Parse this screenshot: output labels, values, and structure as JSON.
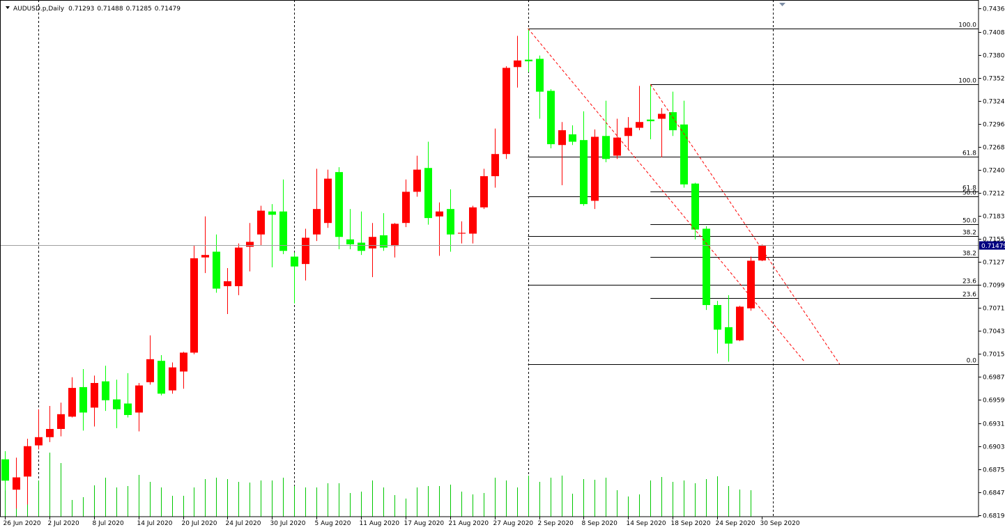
{
  "chart_data": {
    "type": "candlestick",
    "symbol": "AUDUSD.p,Daily",
    "categories": [
      "26 Jun 2020",
      null,
      null,
      null,
      "2 Jul 2020",
      null,
      null,
      null,
      "8 Jul 2020",
      null,
      null,
      null,
      "14 Jul 2020",
      null,
      null,
      null,
      "20 Jul 2020",
      null,
      null,
      null,
      "24 Jul 2020",
      null,
      null,
      null,
      "30 Jul 2020",
      null,
      null,
      null,
      "5 Aug 2020",
      null,
      null,
      null,
      "11 Aug 2020",
      null,
      null,
      null,
      "17 Aug 2020",
      null,
      null,
      null,
      "21 Aug 2020",
      null,
      null,
      null,
      "27 Aug 2020",
      null,
      null,
      null,
      "2 Sep 2020",
      null,
      null,
      null,
      "8 Sep 2020",
      null,
      null,
      null,
      "14 Sep 2020",
      null,
      null,
      null,
      "18 Sep 2020",
      null,
      null,
      null,
      "24 Sep 2020",
      null,
      null,
      null,
      "30 Sep 2020"
    ],
    "open": [
      0.6887,
      0.685,
      0.6866,
      0.6904,
      0.6914,
      0.6924,
      0.6939,
      0.6975,
      0.695,
      0.6982,
      0.696,
      0.6955,
      0.6944,
      0.6981,
      0.7007,
      0.6971,
      0.6994,
      0.7017,
      0.7133,
      0.714,
      0.7098,
      0.7098,
      0.7146,
      0.7161,
      0.7189,
      0.7189,
      0.7134,
      0.7125,
      0.7161,
      0.7175,
      0.7237,
      0.7155,
      0.7151,
      0.7144,
      0.716,
      0.7147,
      0.7175,
      0.7213,
      0.7242,
      0.7183,
      0.7192,
      0.7162,
      0.7162,
      0.7194,
      0.7232,
      0.7259,
      0.7365,
      0.7374,
      0.7375,
      0.7336,
      0.727,
      0.7283,
      0.7276,
      0.7202,
      0.7281,
      0.7257,
      0.7281,
      0.7291,
      0.7301,
      0.7302,
      0.731,
      0.7295,
      0.7223,
      0.7168,
      0.7075,
      0.7048,
      0.7032,
      0.7071,
      0.71293
    ],
    "high": [
      0.6897,
      0.6889,
      0.6912,
      0.6948,
      0.6952,
      0.6956,
      0.6987,
      0.6997,
      0.6989,
      0.7001,
      0.6984,
      0.6992,
      0.698,
      0.7038,
      0.7014,
      0.7005,
      0.7018,
      0.7148,
      0.7183,
      0.7161,
      0.712,
      0.715,
      0.7175,
      0.7196,
      0.7198,
      0.7228,
      0.7139,
      0.7168,
      0.7241,
      0.724,
      0.7243,
      0.7192,
      0.7189,
      0.7175,
      0.7187,
      0.7175,
      0.7228,
      0.7257,
      0.7274,
      0.72,
      0.7216,
      0.7177,
      0.7196,
      0.7241,
      0.729,
      0.7366,
      0.7403,
      0.7412,
      0.7379,
      0.7338,
      0.7298,
      0.7294,
      0.7311,
      0.7289,
      0.7324,
      0.7302,
      0.7304,
      0.7342,
      0.7344,
      0.7315,
      0.7335,
      0.7324,
      0.7224,
      0.7171,
      0.708,
      0.7087,
      0.7074,
      0.7134,
      0.71488
    ],
    "low": [
      0.6849,
      0.6827,
      0.6832,
      0.6899,
      0.6908,
      0.6915,
      0.6938,
      0.6922,
      0.6927,
      0.6946,
      0.6925,
      0.6938,
      0.6921,
      0.6978,
      0.6965,
      0.6967,
      0.6973,
      0.7015,
      0.7114,
      0.709,
      0.7064,
      0.7087,
      0.7116,
      0.7148,
      0.7121,
      0.7137,
      0.7077,
      0.7105,
      0.7153,
      0.7169,
      0.7143,
      0.7143,
      0.7136,
      0.7109,
      0.7141,
      0.7133,
      0.717,
      0.7207,
      0.7173,
      0.7135,
      0.714,
      0.715,
      0.715,
      0.7192,
      0.7218,
      0.7253,
      0.734,
      0.7359,
      0.7302,
      0.7266,
      0.7221,
      0.727,
      0.7196,
      0.7192,
      0.7249,
      0.7253,
      0.7264,
      0.7288,
      0.7277,
      0.7255,
      0.7281,
      0.7218,
      0.7155,
      0.7069,
      0.7016,
      0.7006,
      0.7031,
      0.7068,
      0.71285
    ],
    "close": [
      0.6861,
      0.6865,
      0.6903,
      0.6914,
      0.6924,
      0.6942,
      0.6974,
      0.6944,
      0.698,
      0.6959,
      0.6948,
      0.6941,
      0.6977,
      0.7009,
      0.6967,
      0.6999,
      0.7017,
      0.7132,
      0.7136,
      0.7095,
      0.7104,
      0.7145,
      0.7152,
      0.719,
      0.7185,
      0.7141,
      0.7122,
      0.7157,
      0.7192,
      0.7229,
      0.7158,
      0.7149,
      0.7141,
      0.7158,
      0.7145,
      0.7174,
      0.7213,
      0.724,
      0.7181,
      0.7189,
      0.7161,
      0.7163,
      0.7194,
      0.7232,
      0.7259,
      0.7364,
      0.7373,
      0.7372,
      0.7335,
      0.7271,
      0.7288,
      0.7274,
      0.7198,
      0.728,
      0.7253,
      0.7279,
      0.7291,
      0.7298,
      0.7299,
      0.7308,
      0.7288,
      0.7222,
      0.7167,
      0.7075,
      0.7045,
      0.7028,
      0.7073,
      0.7129,
      0.71479
    ],
    "volume": [
      92,
      52,
      77,
      52,
      92,
      77,
      24,
      28,
      45,
      56,
      42,
      44,
      60,
      50,
      42,
      30,
      30,
      42,
      54,
      56,
      54,
      50,
      49,
      52,
      52,
      56,
      44,
      42,
      42,
      48,
      48,
      34,
      36,
      52,
      42,
      31,
      26,
      42,
      44,
      44,
      46,
      36,
      32,
      34,
      56,
      52,
      42,
      59,
      50,
      56,
      59,
      33,
      54,
      53,
      56,
      38,
      29,
      32,
      52,
      57,
      50,
      52,
      48,
      54,
      58,
      44,
      39,
      38,
      null
    ],
    "ylim": [
      0.68171,
      0.74467
    ],
    "yticks": [
      0.74365,
      {
        "value": 0.7408,
        "label": "0.74080"
      },
      {
        "value": 0.738,
        "label": "0.73800"
      },
      {
        "value": 0.7352,
        "label": "0.73520"
      },
      {
        "value": 0.7324,
        "label": "0.73240"
      },
      {
        "value": 0.7296,
        "label": "0.72960"
      },
      {
        "value": 0.7268,
        "label": "0.72680"
      },
      {
        "value": 0.724,
        "label": "0.72400"
      },
      {
        "value": 0.7212,
        "label": "0.72120"
      },
      0.71835,
      0.71555,
      0.71275,
      0.70995,
      0.70715,
      0.70435,
      0.70155,
      0.69875,
      0.69595,
      {
        "value": 0.6931,
        "label": "0.69310"
      },
      {
        "value": 0.6903,
        "label": "0.69030"
      },
      {
        "value": 0.6875,
        "label": "0.68750"
      },
      {
        "value": 0.6847,
        "label": "0.68470"
      },
      {
        "value": 0.6819,
        "label": "0.68190"
      }
    ],
    "month_starts": [
      3,
      26,
      47,
      69
    ],
    "fibonacci": [
      {
        "start": 47,
        "high": 0.7412,
        "low": 0.7003,
        "levels": [
          {
            "value": 100,
            "label": "100.0"
          },
          61.8,
          {
            "value": 50,
            "label": "50.0"
          },
          38.2,
          23.6,
          {
            "value": 0,
            "label": "0.0"
          }
        ]
      },
      {
        "start": 58,
        "high": 0.7344,
        "low": 0.7003,
        "levels": [
          {
            "value": 100,
            "label": "100.0"
          },
          61.8,
          {
            "value": 50,
            "label": "50.0"
          },
          38.2,
          23.6
        ]
      }
    ],
    "trendlines": [
      {
        "x": [
          47,
          71.9
        ],
        "y": [
          0.7412,
          0.7005
        ]
      },
      {
        "x": [
          58,
          75
        ],
        "y": [
          0.7344,
          0.7003
        ]
      }
    ],
    "bid_line": true,
    "up_color": "#ff0000",
    "down_color": "#00ff00",
    "volume_color": "#00c800",
    "fib_color": "#000000",
    "trend_color": "#ff0000",
    "separator_color": "#000000",
    "bid_line_color": "#a0a0a0",
    "price_label_color": "#000080"
  }
}
